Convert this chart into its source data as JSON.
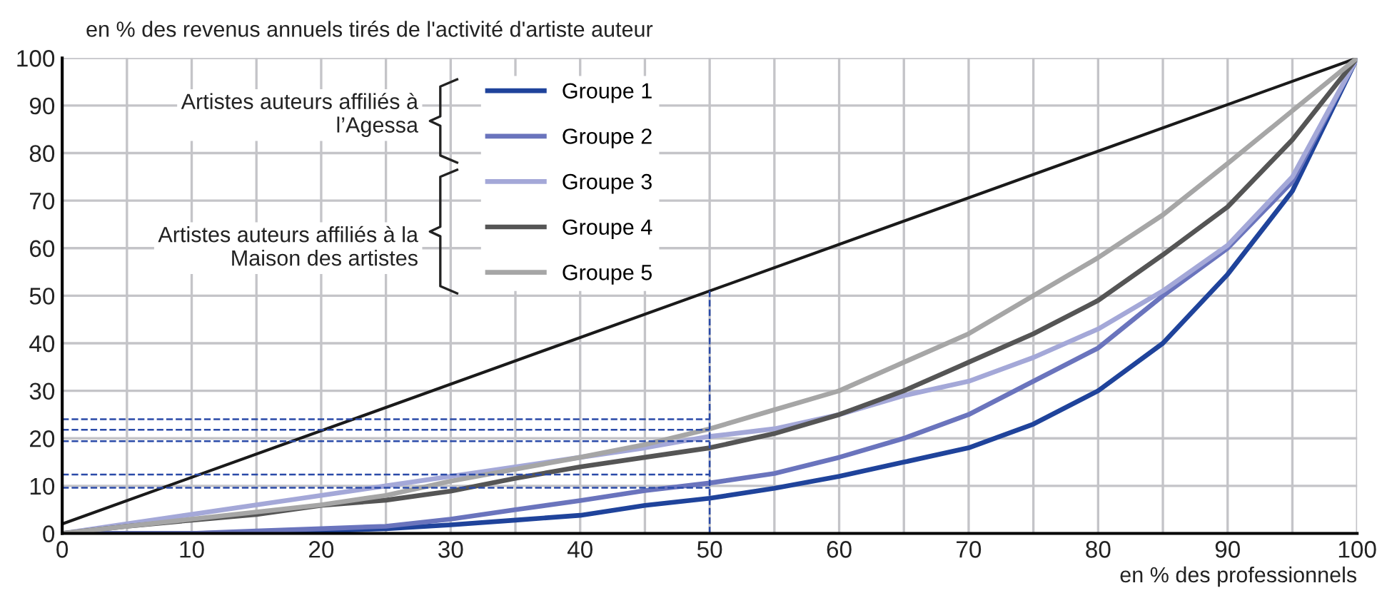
{
  "chart_data": {
    "type": "line",
    "ylabel": "en % des revenus annuels tirés de l'activité d'artiste auteur",
    "xlabel": "en % des professionnels",
    "x": [
      0,
      5,
      10,
      15,
      20,
      25,
      30,
      35,
      40,
      45,
      50,
      55,
      60,
      65,
      70,
      75,
      80,
      85,
      90,
      95,
      100
    ],
    "series": [
      {
        "color": "#1a1a1a",
        "x": [
          0,
          100
        ],
        "values": [
          2,
          100
        ]
      },
      {
        "name": "Groupe 1",
        "color": "#1f439b",
        "values": [
          0,
          0,
          0,
          0.2,
          0.5,
          1,
          1.8,
          2.8,
          3.8,
          5.9,
          7.4,
          9.5,
          12,
          15,
          18,
          23,
          30,
          40,
          54.5,
          72,
          100
        ]
      },
      {
        "name": "Groupe 2",
        "color": "#6a74bd",
        "values": [
          0,
          0,
          0,
          0.5,
          1,
          1.5,
          3,
          5,
          6.9,
          9,
          10.6,
          12.6,
          16,
          20,
          25,
          32,
          39,
          50,
          60,
          74,
          100
        ]
      },
      {
        "name": "Groupe 3",
        "color": "#a4a8d8",
        "values": [
          0,
          2,
          4,
          6,
          8,
          10,
          12,
          14,
          16,
          18,
          20.4,
          22,
          25,
          29,
          32,
          37,
          43,
          51,
          60.6,
          75,
          100
        ]
      },
      {
        "name": "Groupe 4",
        "color": "#555555",
        "values": [
          0,
          1.5,
          2.8,
          4,
          5.9,
          7,
          8.9,
          11.6,
          14,
          16,
          18,
          21,
          25,
          30,
          36,
          42,
          49,
          58.6,
          68.7,
          82.8,
          100
        ]
      },
      {
        "name": "Groupe 5",
        "color": "#a6a6a6",
        "values": [
          0,
          1.5,
          3,
          4.5,
          6,
          8,
          11,
          13.5,
          16,
          18.7,
          22,
          26,
          30,
          36,
          42,
          50,
          58,
          67,
          77.8,
          88.9,
          100
        ]
      }
    ],
    "xlim": [
      0,
      100
    ],
    "ylim": [
      0,
      100
    ],
    "xticks": [
      0,
      {
        "value": 5,
        "label": null
      },
      10,
      {
        "value": 15,
        "label": null
      },
      20,
      {
        "value": 25,
        "label": null
      },
      30,
      {
        "value": 35,
        "label": null
      },
      40,
      {
        "value": 45,
        "label": null
      },
      50,
      {
        "value": 55,
        "label": null
      },
      60,
      {
        "value": 65,
        "label": null
      },
      70,
      {
        "value": 75,
        "label": null
      },
      80,
      {
        "value": 85,
        "label": null
      },
      90,
      {
        "value": 95,
        "label": null
      },
      100
    ],
    "yticks": [
      0,
      10,
      20,
      30,
      40,
      50,
      60,
      70,
      80,
      90,
      100
    ],
    "grid": true,
    "legend": "top left",
    "marker": "none",
    "line_style": "solid",
    "ref_lines": [
      {
        "axis": "x",
        "value": 50,
        "color": "#2a4aa8",
        "line_style": "dashed"
      },
      {
        "axis": "y",
        "value": 24,
        "color": "#2a4aa8",
        "line_style": "dashed"
      },
      {
        "axis": "y",
        "value": 21.8,
        "color": "#2a4aa8",
        "line_style": "dashed"
      },
      {
        "axis": "y",
        "value": 19.4,
        "color": "#2a4aa8",
        "line_style": "dashed"
      },
      {
        "axis": "y",
        "value": 12.4,
        "color": "#2a4aa8",
        "line_style": "dashed"
      },
      {
        "axis": "y",
        "value": 9.6,
        "color": "#2a4aa8",
        "line_style": "dashed"
      }
    ],
    "annotations": [
      "Artistes auteurs affiliés à\nl’Agessa",
      "Artistes auteurs affiliés à la\nMaison des artistes"
    ]
  }
}
